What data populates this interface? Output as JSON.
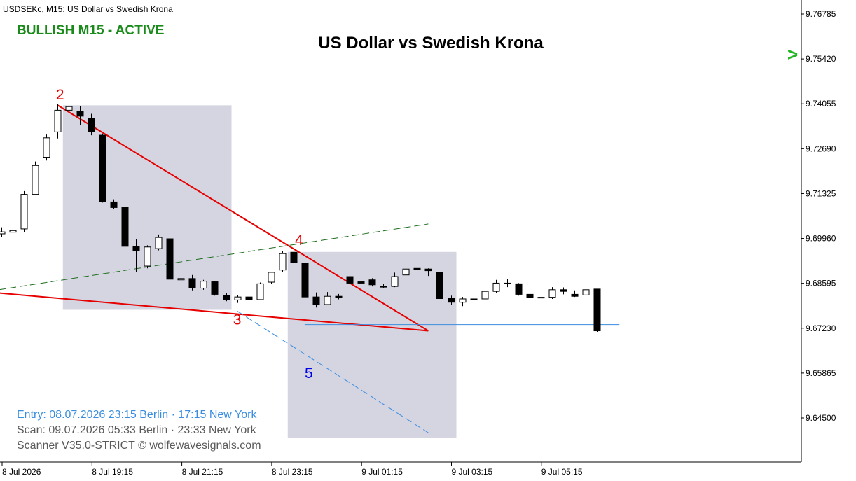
{
  "header": {
    "symbol_text": "USDSEKc, M15:  US Dollar vs Swedish Krona"
  },
  "status": {
    "text": "BULLISH M15 - ACTIVE",
    "color": "#1a8a1a"
  },
  "chart_data": {
    "type": "candlestick",
    "title": "US Dollar vs Swedish Krona",
    "y_ticks": [
      "9.76785",
      "9.75420",
      "9.74055",
      "9.72690",
      "9.71325",
      "9.69960",
      "9.68595",
      "9.67230",
      "9.65865",
      "9.64500"
    ],
    "ylim": [
      9.6365,
      9.7715
    ],
    "x_ticks": [
      "8 Jul 2026",
      "8 Jul 19:15",
      "8 Jul 21:15",
      "8 Jul 23:15",
      "9 Jul 01:15",
      "9 Jul 03:15",
      "9 Jul 05:15"
    ],
    "candle_times": [
      "8 Jul 17:15",
      "8 Jul 17:30",
      "8 Jul 17:45",
      "8 Jul 18:00",
      "8 Jul 18:15",
      "8 Jul 18:30",
      "8 Jul 18:45",
      "8 Jul 19:00",
      "8 Jul 19:15",
      "8 Jul 19:30",
      "8 Jul 19:45",
      "8 Jul 20:00",
      "8 Jul 20:15",
      "8 Jul 20:30",
      "8 Jul 20:45",
      "8 Jul 21:00",
      "8 Jul 21:15",
      "8 Jul 21:30",
      "8 Jul 21:45",
      "8 Jul 22:00",
      "8 Jul 22:15",
      "8 Jul 22:30",
      "8 Jul 22:45",
      "8 Jul 23:00",
      "8 Jul 23:15",
      "8 Jul 23:30",
      "8 Jul 23:45",
      "9 Jul 00:00",
      "9 Jul 00:15",
      "9 Jul 00:30",
      "9 Jul 00:45",
      "9 Jul 01:00",
      "9 Jul 01:15",
      "9 Jul 01:30",
      "9 Jul 01:45",
      "9 Jul 02:00",
      "9 Jul 02:15",
      "9 Jul 02:30",
      "9 Jul 02:45",
      "9 Jul 03:00",
      "9 Jul 03:15",
      "9 Jul 03:30",
      "9 Jul 03:45",
      "9 Jul 04:00",
      "9 Jul 04:15",
      "9 Jul 04:30",
      "9 Jul 04:45",
      "9 Jul 05:00",
      "9 Jul 05:15",
      "9 Jul 05:30",
      "9 Jul 05:45",
      "9 Jul 06:00",
      "9 Jul 06:15",
      "9 Jul 06:30"
    ],
    "candles": [
      {
        "o": 9.701,
        "h": 9.703,
        "l": 9.7,
        "c": 9.7016
      },
      {
        "o": 9.7015,
        "h": 9.7072,
        "l": 9.6998,
        "c": 9.702
      },
      {
        "o": 9.7025,
        "h": 9.714,
        "l": 9.7015,
        "c": 9.713
      },
      {
        "o": 9.713,
        "h": 9.723,
        "l": 9.7128,
        "c": 9.7218
      },
      {
        "o": 9.7243,
        "h": 9.7312,
        "l": 9.7233,
        "c": 9.7302
      },
      {
        "o": 9.732,
        "h": 9.7404,
        "l": 9.73,
        "c": 9.7386
      },
      {
        "o": 9.7386,
        "h": 9.7404,
        "l": 9.736,
        "c": 9.7397
      },
      {
        "o": 9.7382,
        "h": 9.7398,
        "l": 9.734,
        "c": 9.7368
      },
      {
        "o": 9.7362,
        "h": 9.7375,
        "l": 9.731,
        "c": 9.732
      },
      {
        "o": 9.731,
        "h": 9.7315,
        "l": 9.7105,
        "c": 9.7107
      },
      {
        "o": 9.7107,
        "h": 9.7115,
        "l": 9.7085,
        "c": 9.709
      },
      {
        "o": 9.709,
        "h": 9.71,
        "l": 9.696,
        "c": 9.6972
      },
      {
        "o": 9.6972,
        "h": 9.6993,
        "l": 9.6895,
        "c": 9.6958
      },
      {
        "o": 9.6912,
        "h": 9.6975,
        "l": 9.6905,
        "c": 9.697
      },
      {
        "o": 9.6965,
        "h": 9.7008,
        "l": 9.696,
        "c": 9.6999
      },
      {
        "o": 9.6995,
        "h": 9.7025,
        "l": 9.6862,
        "c": 9.6872
      },
      {
        "o": 9.687,
        "h": 9.6893,
        "l": 9.6845,
        "c": 9.6874
      },
      {
        "o": 9.6874,
        "h": 9.6885,
        "l": 9.6838,
        "c": 9.6845
      },
      {
        "o": 9.6845,
        "h": 9.687,
        "l": 9.684,
        "c": 9.6866
      },
      {
        "o": 9.6864,
        "h": 9.6866,
        "l": 9.6822,
        "c": 9.6826
      },
      {
        "o": 9.6822,
        "h": 9.683,
        "l": 9.6805,
        "c": 9.681
      },
      {
        "o": 9.6809,
        "h": 9.6823,
        "l": 9.68,
        "c": 9.6818
      },
      {
        "o": 9.6818,
        "h": 9.6858,
        "l": 9.68,
        "c": 9.6809
      },
      {
        "o": 9.681,
        "h": 9.6862,
        "l": 9.6808,
        "c": 9.6858
      },
      {
        "o": 9.6863,
        "h": 9.6895,
        "l": 9.6858,
        "c": 9.6893
      },
      {
        "o": 9.69,
        "h": 9.6958,
        "l": 9.6895,
        "c": 9.695
      },
      {
        "o": 9.6954,
        "h": 9.6962,
        "l": 9.6915,
        "c": 9.6922
      },
      {
        "o": 9.692,
        "h": 9.6925,
        "l": 9.664,
        "c": 9.6818
      },
      {
        "o": 9.6818,
        "h": 9.6832,
        "l": 9.6786,
        "c": 9.6795
      },
      {
        "o": 9.6795,
        "h": 9.6833,
        "l": 9.6793,
        "c": 9.682
      },
      {
        "o": 9.682,
        "h": 9.6827,
        "l": 9.6811,
        "c": 9.6816
      },
      {
        "o": 9.688,
        "h": 9.689,
        "l": 9.684,
        "c": 9.686
      },
      {
        "o": 9.6864,
        "h": 9.688,
        "l": 9.6855,
        "c": 9.686
      },
      {
        "o": 9.687,
        "h": 9.6875,
        "l": 9.685,
        "c": 9.6855
      },
      {
        "o": 9.685,
        "h": 9.6858,
        "l": 9.6845,
        "c": 9.6848
      },
      {
        "o": 9.685,
        "h": 9.6892,
        "l": 9.6848,
        "c": 9.688
      },
      {
        "o": 9.6885,
        "h": 9.691,
        "l": 9.6883,
        "c": 9.6903
      },
      {
        "o": 9.6905,
        "h": 9.692,
        "l": 9.688,
        "c": 9.6902
      },
      {
        "o": 9.6903,
        "h": 9.6905,
        "l": 9.6882,
        "c": 9.6898
      },
      {
        "o": 9.6893,
        "h": 9.6895,
        "l": 9.6812,
        "c": 9.6813
      },
      {
        "o": 9.6813,
        "h": 9.6822,
        "l": 9.6795,
        "c": 9.6802
      },
      {
        "o": 9.6802,
        "h": 9.6818,
        "l": 9.679,
        "c": 9.6812
      },
      {
        "o": 9.6811,
        "h": 9.6826,
        "l": 9.6803,
        "c": 9.6812
      },
      {
        "o": 9.6812,
        "h": 9.6843,
        "l": 9.68,
        "c": 9.6835
      },
      {
        "o": 9.6835,
        "h": 9.687,
        "l": 9.683,
        "c": 9.686
      },
      {
        "o": 9.686,
        "h": 9.6872,
        "l": 9.6848,
        "c": 9.6858
      },
      {
        "o": 9.6858,
        "h": 9.686,
        "l": 9.6822,
        "c": 9.6826
      },
      {
        "o": 9.6826,
        "h": 9.6828,
        "l": 9.681,
        "c": 9.6816
      },
      {
        "o": 9.6816,
        "h": 9.6825,
        "l": 9.6788,
        "c": 9.6817
      },
      {
        "o": 9.6817,
        "h": 9.6848,
        "l": 9.6812,
        "c": 9.684
      },
      {
        "o": 9.684,
        "h": 9.6847,
        "l": 9.6826,
        "c": 9.6835
      },
      {
        "o": 9.6826,
        "h": 9.6838,
        "l": 9.6818,
        "c": 9.682
      },
      {
        "o": 9.6824,
        "h": 9.6855,
        "l": 9.6822,
        "c": 9.684
      },
      {
        "o": 9.6842,
        "h": 9.6842,
        "l": 9.6712,
        "c": 9.6715
      }
    ],
    "wave_points": [
      {
        "label": "2",
        "candle": 5,
        "price": 9.7402,
        "color": "#e60000"
      },
      {
        "label": "3",
        "candle": 21,
        "price": 9.679,
        "color": "#e60000"
      },
      {
        "label": "4",
        "candle": 26,
        "price": 9.6955,
        "color": "#e60000"
      },
      {
        "label": "5",
        "candle": 27,
        "price": 9.664,
        "color": "#0000e6"
      }
    ],
    "wave_lines": [
      {
        "from": {
          "candle": 5,
          "price": 9.7402
        },
        "to": {
          "candle": 38,
          "price": 9.6715
        },
        "color": "#e60000",
        "style": "solid"
      },
      {
        "from": {
          "candle": -0.2,
          "price": 9.683
        },
        "to": {
          "candle": 38,
          "price": 9.6715
        },
        "color": "#e60000",
        "style": "solid"
      },
      {
        "from": {
          "candle": -0.2,
          "price": 9.684
        },
        "to": {
          "candle": 38,
          "price": 9.704
        },
        "color": "#1f6f1f",
        "style": "dashed"
      },
      {
        "from": {
          "candle": 21,
          "price": 9.6775
        },
        "to": {
          "candle": 38,
          "price": 9.6405
        },
        "color": "#3a8de0",
        "style": "dashed"
      },
      {
        "from": {
          "candle": 27,
          "price": 9.6734
        },
        "to": {
          "candle": 55,
          "price": 9.6734
        },
        "color": "#3a8de0",
        "style": "solid"
      }
    ],
    "zones": [
      {
        "from_candle": 5.5,
        "to_candle": 20.5,
        "price_top": 9.7401,
        "price_bottom": 9.6779,
        "color": "#d5d5e2"
      },
      {
        "from_candle": 25.5,
        "to_candle": 40.5,
        "price_top": 9.6955,
        "price_bottom": 9.639,
        "color": "#d5d5e2"
      }
    ],
    "price_marker": {
      "price": 9.7556,
      "color": "#22b522"
    },
    "colors": {
      "bull_body": "#ffffff",
      "bear_body": "#000000",
      "wick": "#000000"
    }
  },
  "info": {
    "entry_line": "Entry: 08.07.2026  23:15 Berlin · 17:15 New York",
    "entry_color": "#3a8de0",
    "scan_line": "Scan:  09.07.2026  05:33 Berlin · 23:33 New York",
    "scanner_line": "Scanner V35.0-STRICT   © wolfewavesignals.com",
    "muted_color": "#5a5a5a"
  }
}
